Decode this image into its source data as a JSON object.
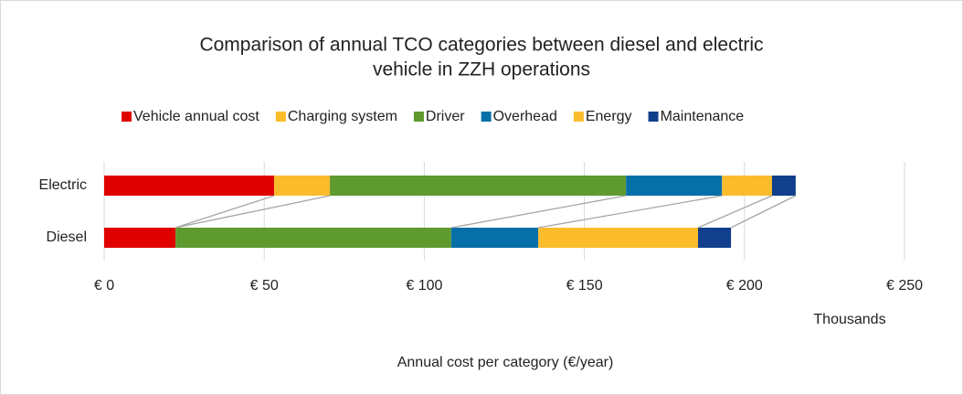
{
  "chart_data": {
    "type": "bar",
    "orientation": "horizontal",
    "stacked": true,
    "title": [
      "Comparison of annual TCO categories between diesel and electric",
      "vehicle in ZZH operations"
    ],
    "categories": [
      "Electric",
      "Diesel"
    ],
    "series": [
      {
        "name": "Vehicle annual cost",
        "color": "#e00000",
        "values": [
          53.1,
          22.3
        ]
      },
      {
        "name": "Charging system",
        "color": "#fbbc2c",
        "values": [
          17.4,
          0
        ]
      },
      {
        "name": "Driver",
        "color": "#5f9a2f",
        "values": [
          92.5,
          86.1
        ]
      },
      {
        "name": "Overhead",
        "color": "#0570a8",
        "values": [
          30,
          27.2
        ]
      },
      {
        "name": "Energy",
        "color": "#fbbc2c",
        "values": [
          15.6,
          49.9
        ]
      },
      {
        "name": "Maintenance",
        "color": "#113f8c",
        "values": [
          7.4,
          10.3
        ]
      }
    ],
    "xlim": [
      0,
      250
    ],
    "xticks": [
      {
        "value": 0,
        "label": "€ 0"
      },
      {
        "value": 50,
        "label": "€ 50"
      },
      {
        "value": 100,
        "label": "€ 100"
      },
      {
        "value": 150,
        "label": "€ 150"
      },
      {
        "value": 200,
        "label": "€ 200"
      },
      {
        "value": 250,
        "label": "€ 250"
      }
    ],
    "x_unit_label": "Thousands",
    "x_label": "Annual cost per category (€/year)",
    "grid": true,
    "legend": "top",
    "series_lines": true
  }
}
